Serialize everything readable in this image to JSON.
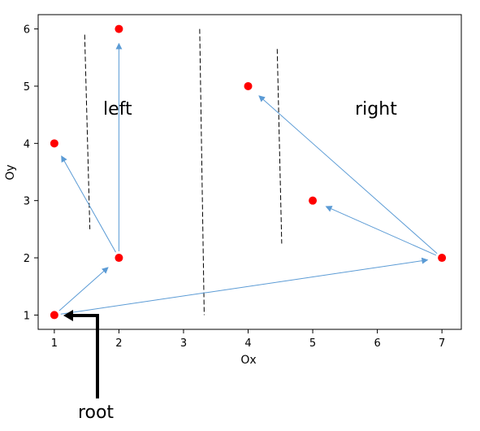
{
  "chart_data": {
    "type": "scatter",
    "xlabel": "Ox",
    "ylabel": "Oy",
    "xlim": [
      0.75,
      7.3
    ],
    "ylim": [
      0.75,
      6.25
    ],
    "xticks": [
      1,
      2,
      3,
      4,
      5,
      6,
      7
    ],
    "yticks": [
      1,
      2,
      3,
      4,
      5,
      6
    ],
    "grid": false,
    "colors": {
      "point": "#ff0000",
      "arrow": "#5b9bd5",
      "divider": "#000000",
      "pointer": "#000000"
    },
    "points": [
      {
        "x": 1,
        "y": 1
      },
      {
        "x": 2,
        "y": 2
      },
      {
        "x": 1,
        "y": 4
      },
      {
        "x": 2,
        "y": 6
      },
      {
        "x": 7,
        "y": 2
      },
      {
        "x": 5,
        "y": 3
      },
      {
        "x": 4,
        "y": 5
      }
    ],
    "edges": [
      {
        "from": [
          1,
          1
        ],
        "to": [
          2,
          2
        ]
      },
      {
        "from": [
          1,
          1
        ],
        "to": [
          7,
          2
        ]
      },
      {
        "from": [
          2,
          2
        ],
        "to": [
          1,
          4
        ]
      },
      {
        "from": [
          2,
          2
        ],
        "to": [
          2,
          6
        ]
      },
      {
        "from": [
          7,
          2
        ],
        "to": [
          5,
          3
        ]
      },
      {
        "from": [
          7,
          2
        ],
        "to": [
          4,
          5
        ]
      }
    ],
    "dividers": [
      {
        "from": [
          1.47,
          5.9
        ],
        "to": [
          1.55,
          2.5
        ]
      },
      {
        "from": [
          3.25,
          6.0
        ],
        "to": [
          3.32,
          1.0
        ]
      },
      {
        "from": [
          4.45,
          5.65
        ],
        "to": [
          4.52,
          2.25
        ]
      }
    ],
    "region_labels": [
      {
        "text": "left",
        "x": 1.98,
        "y": 4.5
      },
      {
        "text": "right",
        "x": 5.98,
        "y": 4.5
      }
    ]
  },
  "annotations": {
    "root_label": "root"
  }
}
